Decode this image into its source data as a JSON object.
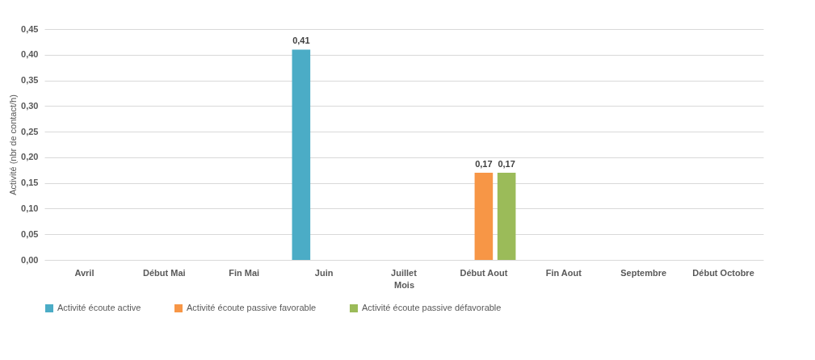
{
  "chart_data": {
    "type": "bar",
    "xlabel": "Mois",
    "ylabel": "Activité (nbr de contact/h)",
    "categories": [
      "Avril",
      "Début Mai",
      "Fin Mai",
      "Juin",
      "Juillet",
      "Début Aout",
      "Fin Aout",
      "Septembre",
      "Début Octobre"
    ],
    "series": [
      {
        "name": "Activité écoute active",
        "color": "#4bacc6",
        "values": [
          null,
          null,
          null,
          0.41,
          null,
          null,
          null,
          null,
          null
        ],
        "value_labels": [
          null,
          null,
          null,
          "0,41",
          null,
          null,
          null,
          null,
          null
        ]
      },
      {
        "name": "Activité écoute passive favorable",
        "color": "#f79646",
        "values": [
          null,
          null,
          null,
          null,
          null,
          0.17,
          null,
          null,
          null
        ],
        "value_labels": [
          null,
          null,
          null,
          null,
          null,
          "0,17",
          null,
          null,
          null
        ]
      },
      {
        "name": "Activité écoute passive défavorable",
        "color": "#9bbb59",
        "values": [
          null,
          null,
          null,
          null,
          null,
          0.17,
          null,
          null,
          null
        ],
        "value_labels": [
          null,
          null,
          null,
          null,
          null,
          "0,17",
          null,
          null,
          null
        ]
      }
    ],
    "ylim": [
      0,
      0.45
    ],
    "yticks": [
      {
        "value": 0,
        "label": "0,00"
      },
      {
        "value": 0.05,
        "label": "0,05"
      },
      {
        "value": 0.1,
        "label": "0,10"
      },
      {
        "value": 0.15,
        "label": "0,15"
      },
      {
        "value": 0.2,
        "label": "0,20"
      },
      {
        "value": 0.25,
        "label": "0,25"
      },
      {
        "value": 0.3,
        "label": "0,30"
      },
      {
        "value": 0.35,
        "label": "0,35"
      },
      {
        "value": 0.4,
        "label": "0,40"
      },
      {
        "value": 0.45,
        "label": "0,45"
      }
    ],
    "grid": "y",
    "legend": "bottom"
  }
}
